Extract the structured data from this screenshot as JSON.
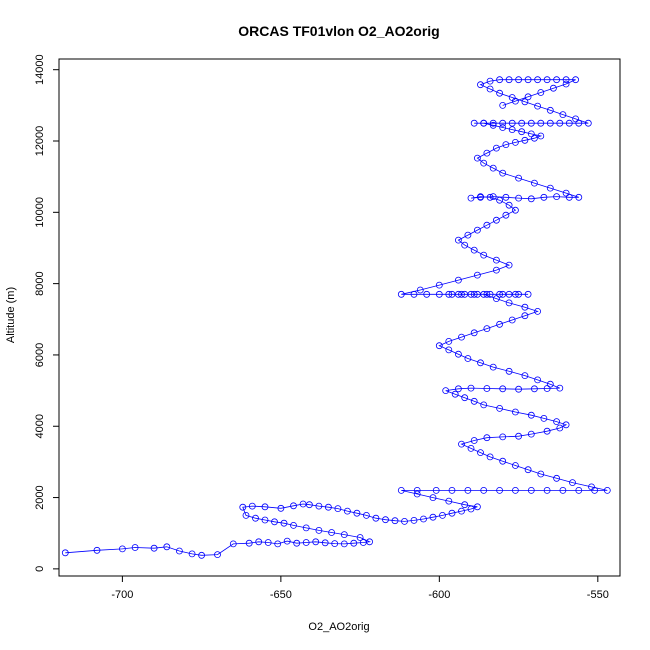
{
  "chart_data": {
    "type": "scatter",
    "title": "ORCAS TF01vlon O2_AO2orig",
    "xlabel": "O2_AO2orig",
    "ylabel": "Altitude (m)",
    "xlim": [
      -720,
      -543
    ],
    "ylim": [
      -200,
      14300
    ],
    "x_ticks": [
      -700,
      -650,
      -600,
      -550
    ],
    "y_ticks": [
      0,
      2000,
      4000,
      6000,
      8000,
      10000,
      12000,
      14000
    ],
    "grid": false,
    "legend": "none",
    "style": "points connected by lines",
    "color": "#0000ff",
    "series": [
      {
        "x": [
          -718,
          -708,
          -700,
          -696,
          -690,
          -686,
          -682,
          -678,
          -675,
          -670,
          -665,
          -660,
          -657,
          -654,
          -651,
          -648,
          -645,
          -642,
          -639,
          -636,
          -633,
          -630,
          -627,
          -624,
          -622,
          -625,
          -630,
          -634,
          -638,
          -642,
          -646,
          -649,
          -652,
          -655,
          -658,
          -661,
          -662,
          -659,
          -655,
          -650,
          -646,
          -643,
          -641,
          -638,
          -635,
          -632,
          -629,
          -626,
          -623,
          -620,
          -617,
          -614,
          -611,
          -608,
          -605,
          -602,
          -599,
          -596,
          -593,
          -590,
          -588,
          -592,
          -597,
          -602,
          -607,
          -612,
          -607,
          -601,
          -596,
          -591,
          -586,
          -581,
          -576,
          -571,
          -566,
          -561,
          -556,
          -551,
          -547,
          -552,
          -558,
          -563,
          -568,
          -572,
          -576,
          -580,
          -584,
          -587,
          -590,
          -593,
          -589,
          -585,
          -580,
          -575,
          -571,
          -566,
          -562,
          -560,
          -563,
          -567,
          -571,
          -576,
          -581,
          -586,
          -589,
          -592,
          -595,
          -598,
          -594,
          -590,
          -585,
          -580,
          -575,
          -570,
          -566,
          -562,
          -565,
          -569,
          -573,
          -578,
          -583,
          -587,
          -591,
          -594,
          -597,
          -600,
          -597,
          -593,
          -589,
          -585,
          -581,
          -577,
          -573,
          -569,
          -573,
          -578,
          -582,
          -586,
          -590,
          -594,
          -597,
          -593,
          -589,
          -585,
          -581,
          -578,
          -575,
          -572,
          -576,
          -580,
          -584,
          -588,
          -592,
          -596,
          -600,
          -604,
          -608,
          -612,
          -606,
          -600,
          -594,
          -588,
          -582,
          -578,
          -582,
          -586,
          -589,
          -592,
          -594,
          -591,
          -588,
          -585,
          -582,
          -579,
          -576,
          -578,
          -581,
          -584,
          -587,
          -590,
          -587,
          -583,
          -579,
          -575,
          -571,
          -567,
          -563,
          -559,
          -556,
          -560,
          -565,
          -570,
          -575,
          -580,
          -583,
          -586,
          -588,
          -585,
          -582,
          -579,
          -576,
          -573,
          -570,
          -568,
          -571,
          -574,
          -577,
          -580,
          -583,
          -586,
          -589,
          -586,
          -583,
          -580,
          -577,
          -574,
          -571,
          -568,
          -565,
          -562,
          -559,
          -556,
          -553,
          -557,
          -561,
          -565,
          -569,
          -573,
          -577,
          -581,
          -584,
          -587,
          -584,
          -581,
          -578,
          -575,
          -572,
          -569,
          -566,
          -563,
          -560,
          -557,
          -560,
          -564,
          -568,
          -572,
          -576,
          -580
        ],
        "y": [
          450,
          520,
          560,
          600,
          580,
          620,
          500,
          420,
          380,
          400,
          700,
          720,
          760,
          740,
          700,
          780,
          720,
          740,
          760,
          730,
          710,
          700,
          720,
          740,
          760,
          880,
          960,
          1020,
          1080,
          1150,
          1220,
          1280,
          1320,
          1370,
          1420,
          1500,
          1730,
          1760,
          1740,
          1700,
          1770,
          1820,
          1800,
          1760,
          1730,
          1690,
          1620,
          1560,
          1500,
          1420,
          1380,
          1350,
          1330,
          1360,
          1400,
          1450,
          1500,
          1560,
          1620,
          1680,
          1740,
          1800,
          1900,
          2000,
          2100,
          2200,
          2200,
          2200,
          2200,
          2200,
          2200,
          2200,
          2200,
          2200,
          2200,
          2200,
          2200,
          2200,
          2200,
          2300,
          2420,
          2540,
          2660,
          2780,
          2900,
          3020,
          3140,
          3260,
          3380,
          3500,
          3600,
          3680,
          3700,
          3720,
          3780,
          3860,
          3950,
          4040,
          4130,
          4220,
          4310,
          4400,
          4500,
          4600,
          4700,
          4800,
          4900,
          5000,
          5050,
          5070,
          5060,
          5050,
          5040,
          5050,
          5060,
          5070,
          5180,
          5300,
          5420,
          5540,
          5660,
          5780,
          5900,
          6020,
          6140,
          6260,
          6380,
          6500,
          6620,
          6740,
          6860,
          6980,
          7100,
          7220,
          7340,
          7460,
          7580,
          7700,
          7700,
          7700,
          7700,
          7700,
          7700,
          7700,
          7700,
          7700,
          7700,
          7700,
          7700,
          7700,
          7700,
          7700,
          7700,
          7700,
          7700,
          7700,
          7700,
          7700,
          7820,
          7960,
          8100,
          8240,
          8380,
          8520,
          8660,
          8800,
          8940,
          9080,
          9220,
          9360,
          9500,
          9640,
          9780,
          9920,
          10060,
          10200,
          10340,
          10420,
          10440,
          10400,
          10420,
          10440,
          10420,
          10400,
          10380,
          10420,
          10440,
          10420,
          10420,
          10540,
          10680,
          10820,
          10960,
          11100,
          11240,
          11380,
          11520,
          11660,
          11800,
          11900,
          11960,
          12020,
          12080,
          12140,
          12200,
          12260,
          12320,
          12380,
          12440,
          12500,
          12500,
          12500,
          12500,
          12500,
          12500,
          12500,
          12500,
          12500,
          12500,
          12500,
          12500,
          12500,
          12500,
          12620,
          12740,
          12860,
          12980,
          13100,
          13220,
          13340,
          13460,
          13580,
          13680,
          13720,
          13720,
          13720,
          13720,
          13720,
          13720,
          13720,
          13720,
          13720,
          13600,
          13480,
          13360,
          13240,
          13120,
          13000
        ]
      }
    ]
  }
}
